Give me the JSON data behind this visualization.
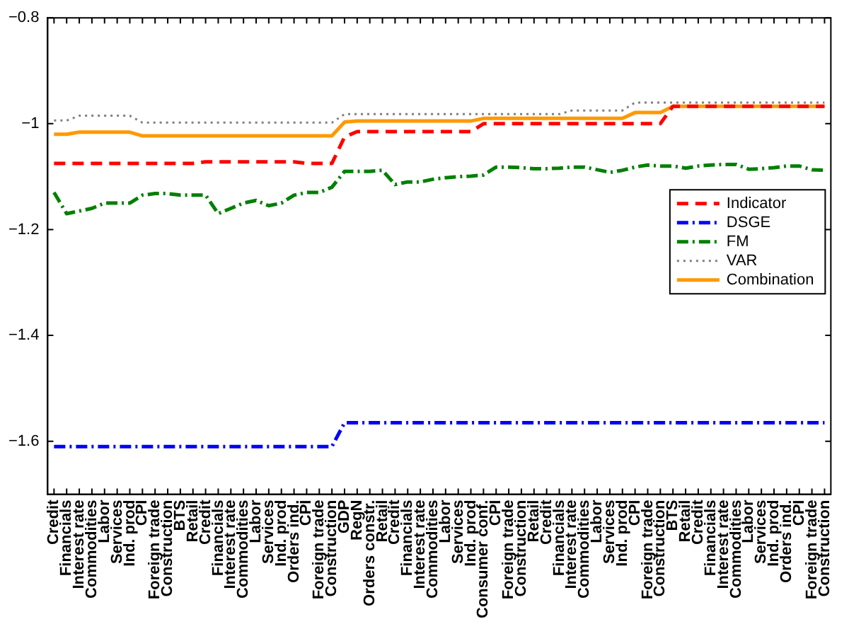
{
  "chart_data": {
    "type": "line",
    "categories": [
      "Credit",
      "Financials",
      "Interest rate",
      "Commodities",
      "Labor",
      "Services",
      "Ind. prod",
      "CPI",
      "Foreign trade",
      "Construction",
      "BTS",
      "Retail",
      "Credit",
      "Financials",
      "Interest rate",
      "Commodities",
      "Labor",
      "Services",
      "Ind. prod",
      "Orders ind.",
      "CPI",
      "Foreign trade",
      "Construction",
      "GDP",
      "RegN",
      "Orders constr.",
      "Retail",
      "Credit",
      "Financials",
      "Interest rate",
      "Commodities",
      "Labor",
      "Services",
      "Ind. prod",
      "Consumer conf.",
      "CPI",
      "Foreign trade",
      "Construction",
      "Retail",
      "Credit",
      "Financials",
      "Interest rate",
      "Commodities",
      "Labor",
      "Services",
      "Ind. prod",
      "CPI",
      "Foreign trade",
      "Construction",
      "BTS",
      "Retail",
      "Credit",
      "Financials",
      "Interest rate",
      "Commodities",
      "Labor",
      "Services",
      "Ind. prod",
      "Orders ind.",
      "CPI",
      "Foreign trade",
      "Construction"
    ],
    "series": [
      {
        "name": "Indicator",
        "color": "#ff0000",
        "line_style": "dashed",
        "values": [
          -1.075,
          -1.075,
          -1.075,
          -1.075,
          -1.075,
          -1.075,
          -1.075,
          -1.075,
          -1.075,
          -1.075,
          -1.075,
          -1.075,
          -1.072,
          -1.072,
          -1.072,
          -1.072,
          -1.072,
          -1.072,
          -1.072,
          -1.072,
          -1.075,
          -1.075,
          -1.075,
          -1.025,
          -1.015,
          -1.015,
          -1.015,
          -1.015,
          -1.015,
          -1.015,
          -1.015,
          -1.015,
          -1.015,
          -1.015,
          -1,
          -1,
          -1,
          -1,
          -1,
          -1,
          -1,
          -1,
          -1,
          -1,
          -1,
          -1,
          -1,
          -1,
          -1,
          -0.967,
          -0.967,
          -0.967,
          -0.967,
          -0.967,
          -0.967,
          -0.967,
          -0.967,
          -0.967,
          -0.967,
          -0.967,
          -0.967,
          -0.967
        ]
      },
      {
        "name": "DSGE",
        "color": "#0000ff",
        "line_style": "dashdot",
        "values": [
          -1.61,
          -1.61,
          -1.61,
          -1.61,
          -1.61,
          -1.61,
          -1.61,
          -1.61,
          -1.61,
          -1.61,
          -1.61,
          -1.61,
          -1.61,
          -1.61,
          -1.61,
          -1.61,
          -1.61,
          -1.61,
          -1.61,
          -1.61,
          -1.61,
          -1.61,
          -1.61,
          -1.565,
          -1.565,
          -1.565,
          -1.565,
          -1.565,
          -1.565,
          -1.565,
          -1.565,
          -1.565,
          -1.565,
          -1.565,
          -1.565,
          -1.565,
          -1.565,
          -1.565,
          -1.565,
          -1.565,
          -1.565,
          -1.565,
          -1.565,
          -1.565,
          -1.565,
          -1.565,
          -1.565,
          -1.565,
          -1.565,
          -1.565,
          -1.565,
          -1.565,
          -1.565,
          -1.565,
          -1.565,
          -1.565,
          -1.565,
          -1.565,
          -1.565,
          -1.565,
          -1.565,
          -1.565
        ]
      },
      {
        "name": "FM",
        "color": "#008000",
        "line_style": "dashdot",
        "values": [
          -1.13,
          -1.17,
          -1.165,
          -1.16,
          -1.15,
          -1.15,
          -1.15,
          -1.135,
          -1.132,
          -1.132,
          -1.135,
          -1.135,
          -1.135,
          -1.17,
          -1.16,
          -1.15,
          -1.145,
          -1.155,
          -1.15,
          -1.135,
          -1.13,
          -1.13,
          -1.12,
          -1.09,
          -1.09,
          -1.09,
          -1.088,
          -1.115,
          -1.11,
          -1.11,
          -1.105,
          -1.102,
          -1.1,
          -1.099,
          -1.097,
          -1.082,
          -1.082,
          -1.083,
          -1.085,
          -1.085,
          -1.084,
          -1.082,
          -1.082,
          -1.087,
          -1.092,
          -1.088,
          -1.082,
          -1.078,
          -1.08,
          -1.08,
          -1.084,
          -1.08,
          -1.078,
          -1.077,
          -1.077,
          -1.086,
          -1.085,
          -1.083,
          -1.08,
          -1.08,
          -1.087,
          -1.088
        ]
      },
      {
        "name": "VAR",
        "color": "#808080",
        "line_style": "dotted",
        "values": [
          -0.994,
          -0.994,
          -0.985,
          -0.985,
          -0.985,
          -0.985,
          -0.985,
          -0.998,
          -0.998,
          -0.998,
          -0.998,
          -0.998,
          -0.998,
          -0.998,
          -0.998,
          -0.998,
          -0.998,
          -0.998,
          -0.998,
          -0.998,
          -0.998,
          -0.998,
          -0.998,
          -0.982,
          -0.982,
          -0.982,
          -0.982,
          -0.982,
          -0.982,
          -0.982,
          -0.982,
          -0.982,
          -0.982,
          -0.982,
          -0.982,
          -0.982,
          -0.982,
          -0.982,
          -0.982,
          -0.982,
          -0.982,
          -0.975,
          -0.975,
          -0.975,
          -0.975,
          -0.975,
          -0.96,
          -0.96,
          -0.96,
          -0.96,
          -0.96,
          -0.96,
          -0.96,
          -0.96,
          -0.96,
          -0.96,
          -0.96,
          -0.96,
          -0.96,
          -0.96,
          -0.96,
          -0.96
        ]
      },
      {
        "name": "Combination",
        "color": "#ff9900",
        "line_style": "solid",
        "values": [
          -1.02,
          -1.02,
          -1.016,
          -1.016,
          -1.016,
          -1.016,
          -1.016,
          -1.023,
          -1.023,
          -1.023,
          -1.023,
          -1.023,
          -1.023,
          -1.023,
          -1.023,
          -1.023,
          -1.023,
          -1.023,
          -1.023,
          -1.023,
          -1.023,
          -1.023,
          -1.023,
          -0.997,
          -0.995,
          -0.995,
          -0.995,
          -0.995,
          -0.995,
          -0.995,
          -0.995,
          -0.995,
          -0.995,
          -0.995,
          -0.99,
          -0.99,
          -0.99,
          -0.99,
          -0.99,
          -0.99,
          -0.99,
          -0.99,
          -0.99,
          -0.99,
          -0.99,
          -0.99,
          -0.979,
          -0.979,
          -0.979,
          -0.967,
          -0.967,
          -0.967,
          -0.967,
          -0.967,
          -0.967,
          -0.967,
          -0.967,
          -0.967,
          -0.967,
          -0.967,
          -0.967,
          -0.967
        ]
      }
    ],
    "ylim": [
      -1.7,
      -0.8
    ],
    "yticks": [
      {
        "value": -1.6,
        "label": "−1.6"
      },
      {
        "value": -1.4,
        "label": "−1.4"
      },
      {
        "value": -1.2,
        "label": "−1.2"
      },
      {
        "value": -1,
        "label": "−1"
      },
      {
        "value": -0.8,
        "label": "−0.8"
      }
    ],
    "grid": false,
    "legend": "right",
    "marker": "none"
  }
}
